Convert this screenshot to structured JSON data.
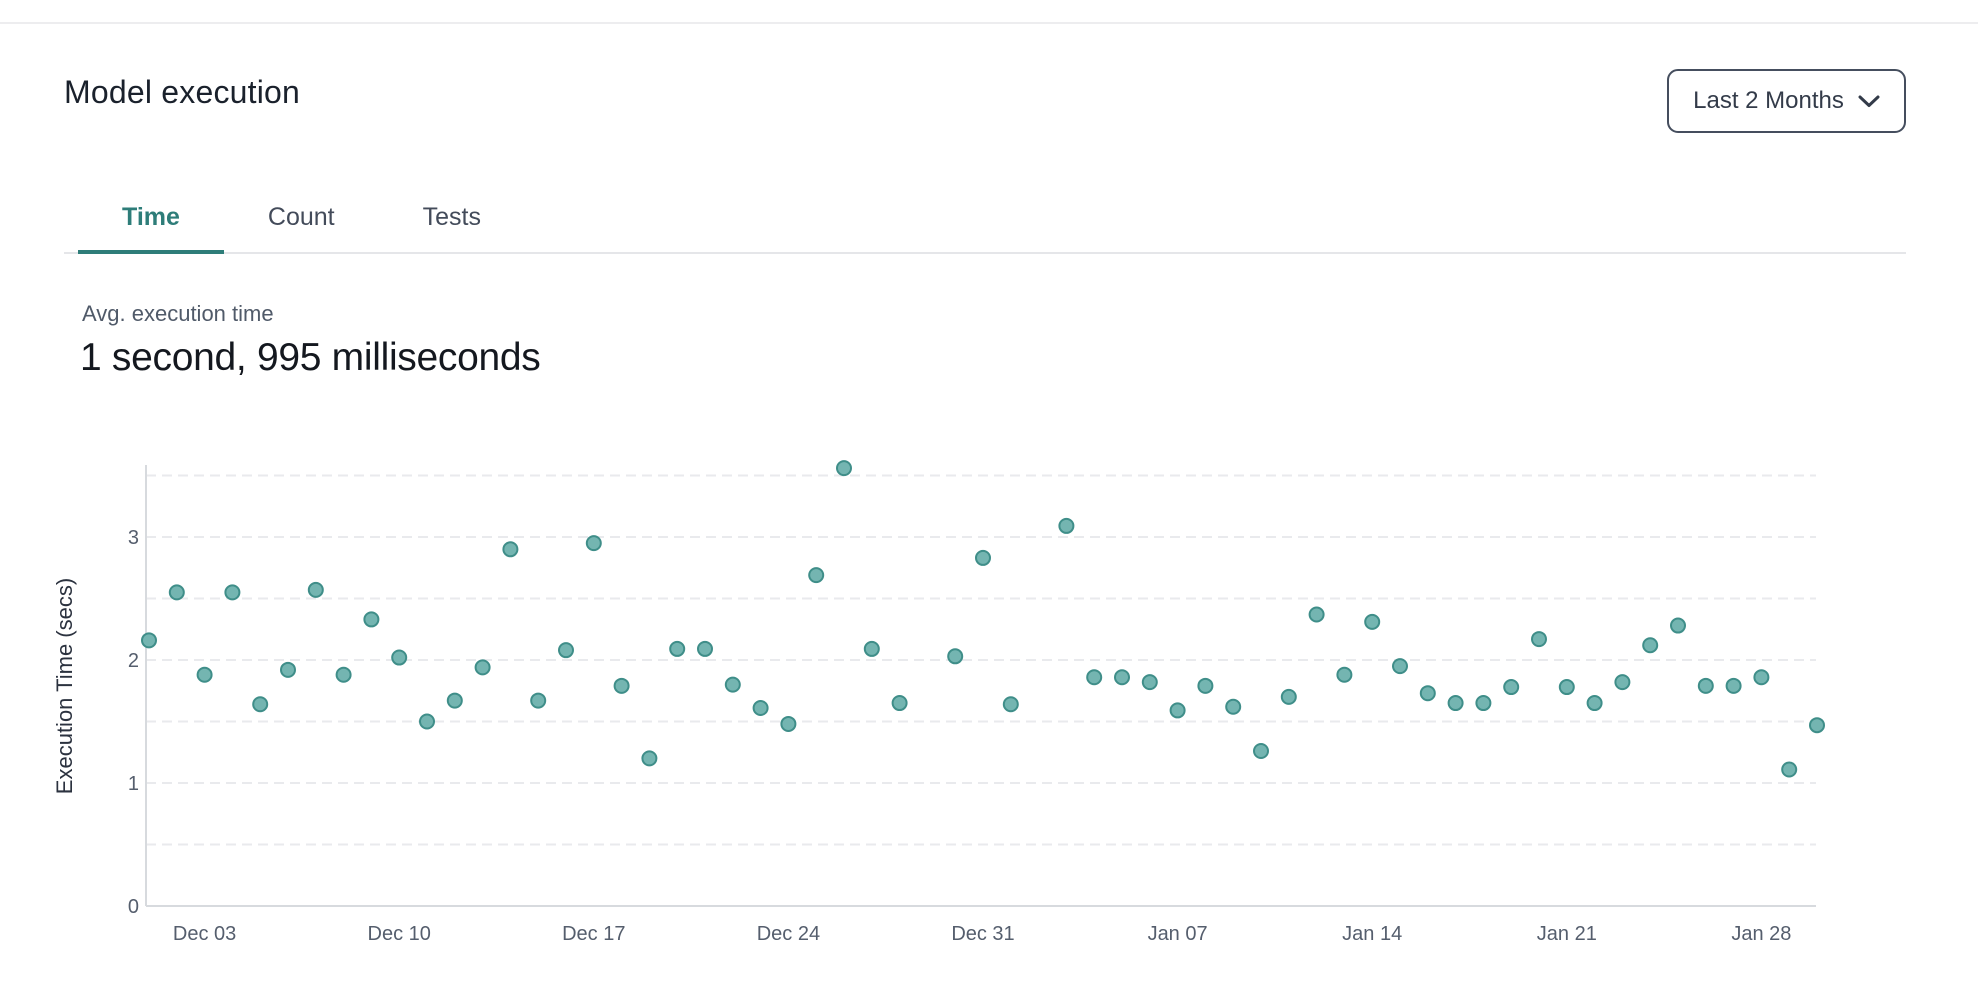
{
  "page": {
    "title": "Model execution"
  },
  "controls": {
    "range_selector": {
      "label": "Last 2 Months",
      "icon": "chevron-down-icon"
    }
  },
  "tabs": [
    {
      "label": "Time",
      "active": true
    },
    {
      "label": "Count",
      "active": false
    },
    {
      "label": "Tests",
      "active": false
    }
  ],
  "stat": {
    "label": "Avg. execution time",
    "value": "1 second, 995 milliseconds"
  },
  "colors": {
    "accent": "#2e7d79",
    "dot_fill": "#74b5b1",
    "dot_stroke": "#3f8e89",
    "grid": "#e9eaed",
    "axis": "#d7dade",
    "tick_text": "#555e6d",
    "axis_label_text": "#2b323f"
  },
  "chart_data": {
    "type": "scatter",
    "title": "",
    "xlabel": "",
    "ylabel": "Execution Time (secs)",
    "ylim": [
      0,
      3.7
    ],
    "yticks": [
      0,
      1,
      2,
      3
    ],
    "grid": "horizontal dashed every 0.5",
    "legend": "none",
    "xticks": [
      "Dec 03",
      "Dec 10",
      "Dec 17",
      "Dec 24",
      "Dec 31",
      "Jan 07",
      "Jan 14",
      "Jan 21",
      "Jan 28"
    ],
    "points": [
      {
        "date": "Dec 01",
        "secs": 2.16
      },
      {
        "date": "Dec 02",
        "secs": 2.55
      },
      {
        "date": "Dec 03",
        "secs": 1.88
      },
      {
        "date": "Dec 04",
        "secs": 2.55
      },
      {
        "date": "Dec 05",
        "secs": 1.64
      },
      {
        "date": "Dec 06",
        "secs": 1.92
      },
      {
        "date": "Dec 07",
        "secs": 2.57
      },
      {
        "date": "Dec 08",
        "secs": 1.88
      },
      {
        "date": "Dec 09",
        "secs": 2.33
      },
      {
        "date": "Dec 10",
        "secs": 2.02
      },
      {
        "date": "Dec 11",
        "secs": 1.5
      },
      {
        "date": "Dec 12",
        "secs": 1.67
      },
      {
        "date": "Dec 13",
        "secs": 1.94
      },
      {
        "date": "Dec 14",
        "secs": 2.9
      },
      {
        "date": "Dec 15",
        "secs": 1.67
      },
      {
        "date": "Dec 16",
        "secs": 2.08
      },
      {
        "date": "Dec 17",
        "secs": 2.95
      },
      {
        "date": "Dec 18",
        "secs": 1.79
      },
      {
        "date": "Dec 19",
        "secs": 1.2
      },
      {
        "date": "Dec 20",
        "secs": 2.09
      },
      {
        "date": "Dec 21",
        "secs": 2.09
      },
      {
        "date": "Dec 22",
        "secs": 1.8
      },
      {
        "date": "Dec 23",
        "secs": 1.61
      },
      {
        "date": "Dec 24",
        "secs": 1.48
      },
      {
        "date": "Dec 25",
        "secs": 2.69
      },
      {
        "date": "Dec 26",
        "secs": 3.56
      },
      {
        "date": "Dec 27",
        "secs": 2.09
      },
      {
        "date": "Dec 28",
        "secs": 1.65
      },
      {
        "date": "Dec 30",
        "secs": 2.03
      },
      {
        "date": "Dec 31",
        "secs": 2.83
      },
      {
        "date": "Jan 01",
        "secs": 1.64
      },
      {
        "date": "Jan 03",
        "secs": 3.09
      },
      {
        "date": "Jan 04",
        "secs": 1.86
      },
      {
        "date": "Jan 05",
        "secs": 1.86
      },
      {
        "date": "Jan 06",
        "secs": 1.82
      },
      {
        "date": "Jan 07",
        "secs": 1.59
      },
      {
        "date": "Jan 08",
        "secs": 1.79
      },
      {
        "date": "Jan 09",
        "secs": 1.62
      },
      {
        "date": "Jan 10",
        "secs": 1.26
      },
      {
        "date": "Jan 11",
        "secs": 1.7
      },
      {
        "date": "Jan 12",
        "secs": 2.37
      },
      {
        "date": "Jan 13",
        "secs": 1.88
      },
      {
        "date": "Jan 14",
        "secs": 2.31
      },
      {
        "date": "Jan 15",
        "secs": 1.95
      },
      {
        "date": "Jan 16",
        "secs": 1.73
      },
      {
        "date": "Jan 17",
        "secs": 1.65
      },
      {
        "date": "Jan 18",
        "secs": 1.65
      },
      {
        "date": "Jan 19",
        "secs": 1.78
      },
      {
        "date": "Jan 20",
        "secs": 2.17
      },
      {
        "date": "Jan 21",
        "secs": 1.78
      },
      {
        "date": "Jan 22",
        "secs": 1.65
      },
      {
        "date": "Jan 23",
        "secs": 1.82
      },
      {
        "date": "Jan 24",
        "secs": 2.12
      },
      {
        "date": "Jan 25",
        "secs": 2.28
      },
      {
        "date": "Jan 26",
        "secs": 1.79
      },
      {
        "date": "Jan 27",
        "secs": 1.79
      },
      {
        "date": "Jan 28",
        "secs": 1.86
      },
      {
        "date": "Jan 29",
        "secs": 1.11
      },
      {
        "date": "Jan 30",
        "secs": 1.47
      }
    ]
  }
}
